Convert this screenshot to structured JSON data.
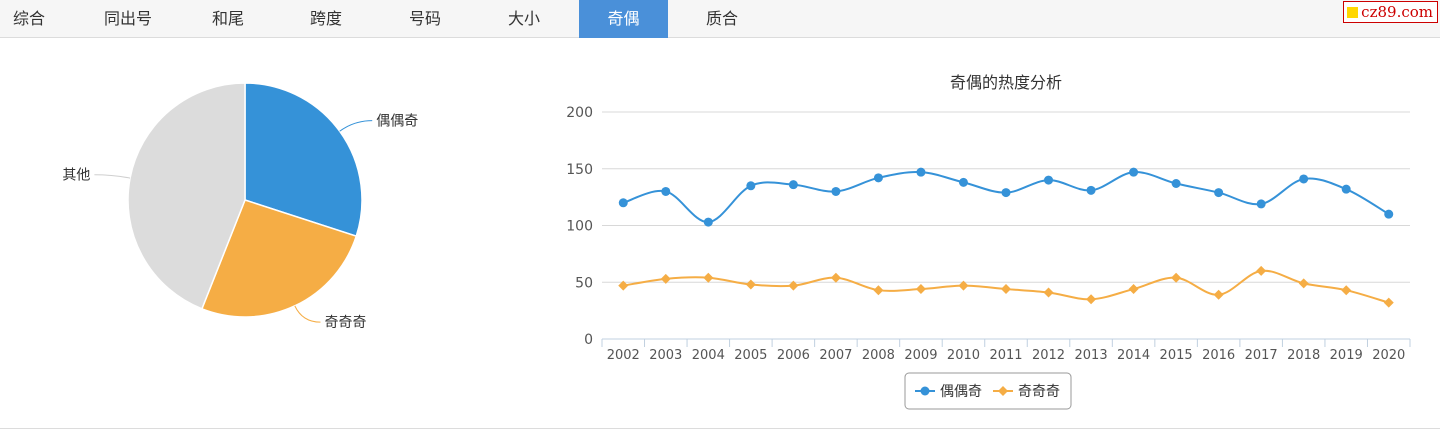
{
  "tabs": [
    {
      "label": "综合",
      "active": false
    },
    {
      "label": "同出号",
      "active": false
    },
    {
      "label": "和尾",
      "active": false
    },
    {
      "label": "跨度",
      "active": false
    },
    {
      "label": "号码",
      "active": false
    },
    {
      "label": "大小",
      "active": false
    },
    {
      "label": "奇偶",
      "active": true
    },
    {
      "label": "质合",
      "active": false
    }
  ],
  "logo": {
    "text": "cz89.com"
  },
  "colors": {
    "blue": "#3592d8",
    "orange": "#f5ad45",
    "gray": "#dcdcdc",
    "active_tab": "#4a90d9",
    "logo_red": "#cc0000"
  },
  "chart_data": [
    {
      "type": "pie",
      "slices": [
        {
          "label": "偶偶奇",
          "value": 30
        },
        {
          "label": "奇奇奇",
          "value": 26
        },
        {
          "label": "其他",
          "value": 44
        }
      ]
    },
    {
      "type": "line",
      "title": "奇偶的热度分析",
      "categories": [
        "2002",
        "2003",
        "2004",
        "2005",
        "2006",
        "2007",
        "2008",
        "2009",
        "2010",
        "2011",
        "2012",
        "2013",
        "2014",
        "2015",
        "2016",
        "2017",
        "2018",
        "2019",
        "2020"
      ],
      "series": [
        {
          "name": "偶偶奇",
          "marker": "circle",
          "values": [
            120,
            130,
            103,
            135,
            136,
            130,
            142,
            147,
            138,
            129,
            140,
            131,
            147,
            137,
            129,
            119,
            141,
            132,
            110
          ]
        },
        {
          "name": "奇奇奇",
          "marker": "diamond",
          "values": [
            47,
            53,
            54,
            48,
            47,
            54,
            43,
            44,
            47,
            44,
            41,
            35,
            44,
            54,
            39,
            60,
            49,
            43,
            32
          ]
        }
      ],
      "yticks": [
        0,
        50,
        100,
        150,
        200
      ],
      "ylim": [
        0,
        200
      ],
      "grid": true,
      "legend": "bottom-center"
    }
  ]
}
